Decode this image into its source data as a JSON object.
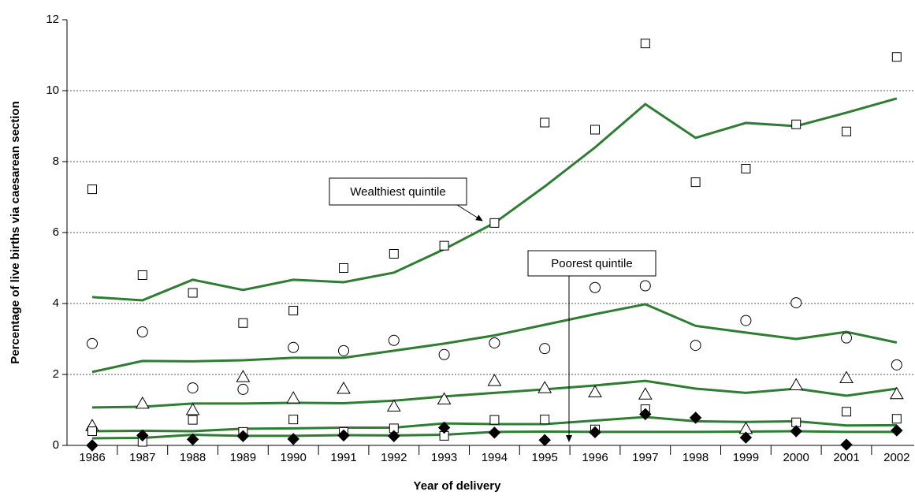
{
  "chart_data": {
    "type": "line",
    "x_label": "Year of delivery",
    "y_label": "Percentage of live births via caesarean section",
    "categories": [
      "1986",
      "1987",
      "1988",
      "1989",
      "1990",
      "1991",
      "1992",
      "1993",
      "1994",
      "1995",
      "1996",
      "1997",
      "1998",
      "1999",
      "2000",
      "2001",
      "2002"
    ],
    "ylim": [
      0,
      12
    ],
    "yticks": [
      0,
      2,
      4,
      6,
      8,
      10,
      12
    ],
    "grid": true,
    "line_color": "#2e7d32",
    "lines": [
      {
        "values": [
          4.18,
          4.09,
          4.67,
          4.38,
          4.67,
          4.6,
          4.87,
          5.53,
          6.27,
          7.3,
          8.4,
          9.62,
          8.67,
          9.09,
          9.0,
          9.38,
          9.78
        ]
      },
      {
        "values": [
          2.07,
          2.38,
          2.37,
          2.4,
          2.47,
          2.47,
          2.67,
          2.87,
          3.1,
          3.4,
          3.7,
          3.98,
          3.37,
          3.18,
          3.0,
          3.2,
          2.9
        ]
      },
      {
        "values": [
          1.07,
          1.09,
          1.18,
          1.18,
          1.2,
          1.19,
          1.26,
          1.38,
          1.48,
          1.58,
          1.69,
          1.82,
          1.6,
          1.48,
          1.6,
          1.4,
          1.6
        ]
      },
      {
        "values": [
          0.4,
          0.41,
          0.4,
          0.47,
          0.48,
          0.5,
          0.5,
          0.62,
          0.6,
          0.6,
          0.7,
          0.8,
          0.68,
          0.66,
          0.68,
          0.56,
          0.57
        ]
      },
      {
        "values": [
          0.2,
          0.21,
          0.3,
          0.27,
          0.27,
          0.29,
          0.28,
          0.3,
          0.38,
          0.39,
          0.38,
          0.38,
          0.38,
          0.39,
          0.4,
          0.38,
          0.38
        ]
      }
    ],
    "series": [
      {
        "marker": "square",
        "color": "#ffffff",
        "values": [
          7.22,
          4.8,
          4.3,
          3.45,
          3.8,
          5.0,
          5.4,
          5.63,
          6.27,
          9.1,
          8.9,
          11.33,
          7.42,
          7.8,
          9.05,
          8.85,
          10.95
        ]
      },
      {
        "marker": "circle",
        "color": "#ffffff",
        "values": [
          2.87,
          3.2,
          1.62,
          1.58,
          2.76,
          2.67,
          2.96,
          2.56,
          2.89,
          2.73,
          4.45,
          4.5,
          2.82,
          3.52,
          4.02,
          3.03,
          2.27
        ]
      },
      {
        "marker": "triangle",
        "color": "#ffffff",
        "values": [
          0.55,
          1.18,
          1.0,
          1.93,
          1.33,
          1.6,
          1.1,
          1.3,
          1.82,
          1.62,
          1.5,
          1.44,
          null,
          0.47,
          1.7,
          1.9,
          1.45
        ]
      },
      {
        "marker": "square",
        "color": "#ffffff",
        "values": [
          0.4,
          0.1,
          0.72,
          0.38,
          0.73,
          0.38,
          0.48,
          0.27,
          0.72,
          0.73,
          0.45,
          1.02,
          null,
          null,
          0.65,
          0.95,
          0.75
        ]
      },
      {
        "marker": "diamond",
        "color": "#000000",
        "values": [
          0.0,
          0.28,
          0.17,
          0.26,
          0.18,
          0.28,
          0.26,
          0.5,
          0.36,
          0.15,
          0.37,
          0.88,
          0.78,
          0.22,
          0.4,
          0.02,
          0.42
        ]
      }
    ],
    "annotations": [
      {
        "text": "Wealthiest quintile"
      },
      {
        "text": "Poorest quintile"
      }
    ]
  }
}
